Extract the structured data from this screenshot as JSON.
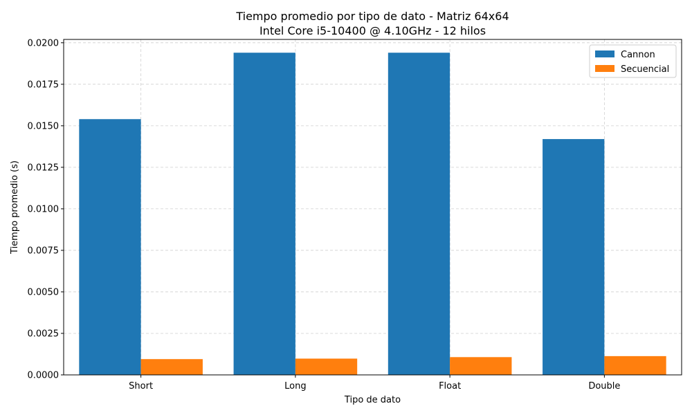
{
  "chart_data": {
    "type": "bar",
    "title": "Tiempo promedio por tipo de dato - Matriz 64x64",
    "subtitle": "Intel Core i5-10400 @ 4.10GHz - 12 hilos",
    "xlabel": "Tipo de dato",
    "ylabel": "Tiempo promedio (s)",
    "categories": [
      "Short",
      "Long",
      "Float",
      "Double"
    ],
    "series": [
      {
        "name": "Cannon",
        "color": "#1f77b4",
        "values": [
          0.0154,
          0.0194,
          0.0194,
          0.0142
        ]
      },
      {
        "name": "Secuencial",
        "color": "#ff7f0e",
        "values": [
          0.00095,
          0.00098,
          0.00107,
          0.00113
        ]
      }
    ],
    "ylim": [
      0,
      0.0202
    ],
    "yticks": [
      "0.0000",
      "0.0025",
      "0.0050",
      "0.0075",
      "0.0100",
      "0.0125",
      "0.0150",
      "0.0175",
      "0.0200"
    ],
    "grid": true,
    "legend_position": "top-right"
  }
}
